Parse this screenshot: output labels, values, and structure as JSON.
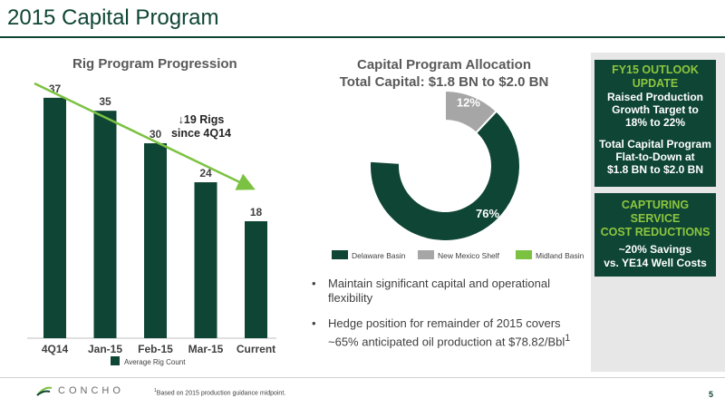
{
  "page": {
    "title": "2015 Capital Program",
    "page_number": "5"
  },
  "colors": {
    "dark_green": "#0e4534",
    "light_green": "#7cc242",
    "gray": "#a6a6a6",
    "arrow_green": "#7cc242"
  },
  "rig_chart": {
    "title": "Rig Program Progression",
    "legend": "Average Rig Count",
    "annotation_line1": "↓19 Rigs",
    "annotation_line2": "since 4Q14"
  },
  "alloc_chart": {
    "title_line1": "Capital Program Allocation",
    "title_line2": "Total Capital: $1.8 BN to $2.0 BN",
    "labels": [
      "76%",
      "12%",
      "12%"
    ]
  },
  "chart_data": [
    {
      "type": "bar",
      "title": "Rig Program Progression",
      "categories": [
        "4Q14",
        "Jan-15",
        "Feb-15",
        "Mar-15",
        "Current"
      ],
      "series": [
        {
          "name": "Average Rig Count",
          "values": [
            37,
            35,
            30,
            24,
            18
          ]
        }
      ],
      "ylim": [
        0,
        40
      ]
    },
    {
      "type": "pie",
      "title": "Capital Program Allocation Total Capital: $1.8 BN to $2.0 BN",
      "categories": [
        "Delaware Basin",
        "New Mexico Shelf",
        "Midland Basin"
      ],
      "values": [
        76,
        12,
        12
      ],
      "legend_position": "bottom"
    }
  ],
  "bullets": [
    "Maintain significant capital and operational flexibility",
    "Hedge position for remainder of 2015 covers ~65% anticipated oil production at $78.82/Bbl"
  ],
  "bullet2_sup": "1",
  "outlook_box": {
    "head1": "FY15 OUTLOOK",
    "head2": "UPDATE",
    "line1": "Raised Production",
    "line2": "Growth Target to",
    "line3": "18% to 22%",
    "line4": "Total Capital Program",
    "line5": "Flat-to-Down at",
    "line6": "$1.8 BN to $2.0 BN"
  },
  "savings_box": {
    "head1": "CAPTURING",
    "head2": "SERVICE",
    "head3": "COST REDUCTIONS",
    "line1": "~20% Savings",
    "line2": "vs. YE14 Well Costs"
  },
  "footer": {
    "footnote_sup": "1",
    "footnote": "Based on 2015 production guidance midpoint.",
    "logo_text": "CONCHO"
  }
}
